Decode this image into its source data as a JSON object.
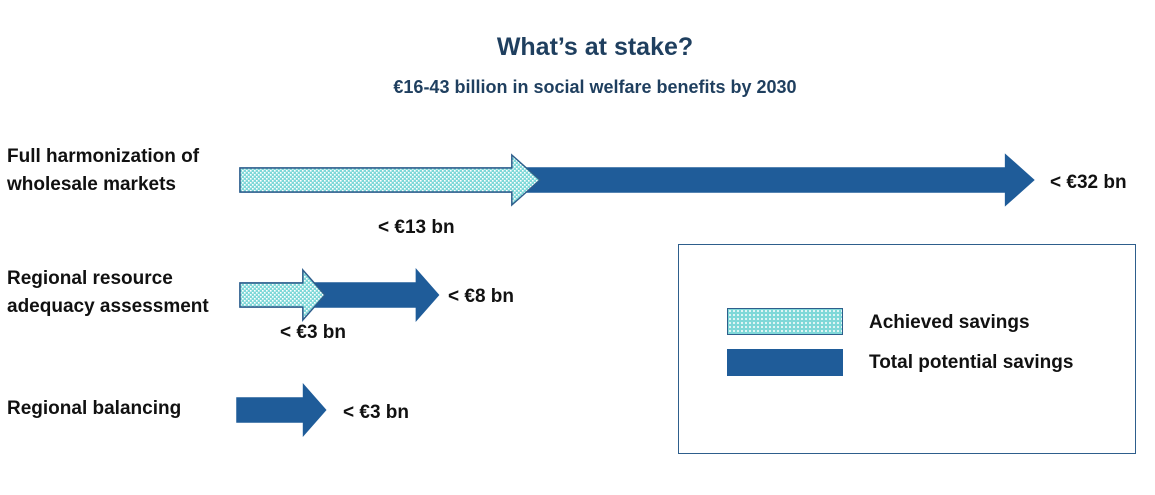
{
  "chart_data": {
    "type": "bar",
    "orientation": "horizontal",
    "title": "What’s at stake?",
    "subtitle": "€16-43 billion in social welfare benefits by 2030",
    "categories": [
      "Full harmonization of\nwholesale markets",
      "Regional resource\nadequacy assessment",
      "Regional balancing"
    ],
    "series": [
      {
        "name": "Achieved savings",
        "values": [
          13,
          3,
          null
        ],
        "labels": [
          "< €13 bn",
          "< €3 bn",
          ""
        ],
        "color": "#7fd8d8"
      },
      {
        "name": "Total potential savings",
        "values": [
          32,
          8,
          3
        ],
        "labels": [
          "< €32 bn",
          "< €8 bn",
          "< €3 bn"
        ],
        "color": "#1f5c99"
      }
    ],
    "xlim": [
      0,
      32
    ],
    "legend_position": "bottom-right"
  }
}
